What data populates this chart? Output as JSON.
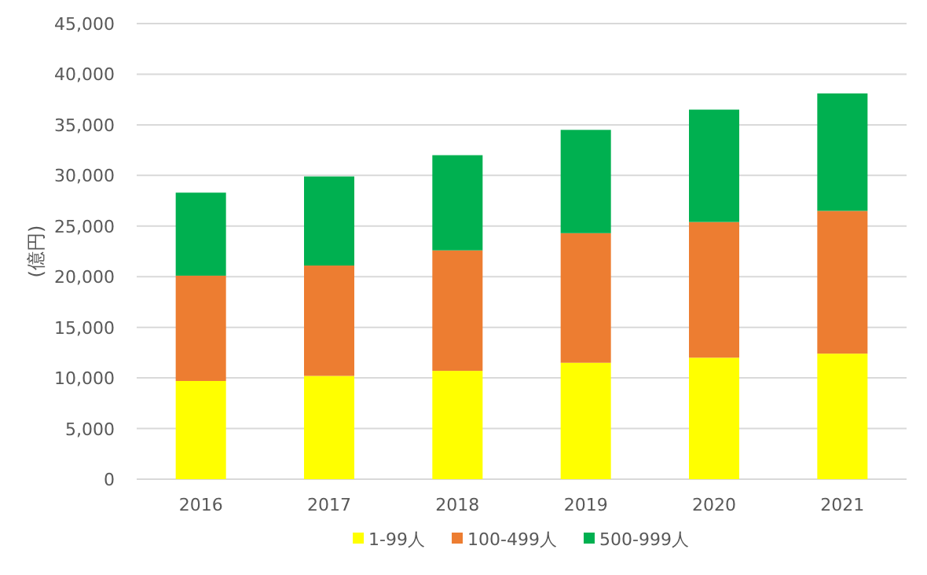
{
  "chart_data": {
    "type": "bar",
    "stacked": true,
    "ylabel": "(億円)",
    "categories": [
      "2016",
      "2017",
      "2018",
      "2019",
      "2020",
      "2021"
    ],
    "series": [
      {
        "name": "1-99人",
        "color": "#ffff00",
        "values": [
          9700,
          10200,
          10700,
          11500,
          12000,
          12400
        ]
      },
      {
        "name": "100-499人",
        "color": "#ed7d31",
        "values": [
          10400,
          10900,
          11900,
          12800,
          13400,
          14100
        ]
      },
      {
        "name": "500-999人",
        "color": "#00b050",
        "values": [
          8200,
          8800,
          9400,
          10200,
          11100,
          11600
        ]
      }
    ],
    "ylim": [
      0,
      45000
    ],
    "yticks": [
      {
        "value": 0,
        "label": "0"
      },
      {
        "value": 5000,
        "label": "5,000"
      },
      {
        "value": 10000,
        "label": "10,000"
      },
      {
        "value": 15000,
        "label": "15,000"
      },
      {
        "value": 20000,
        "label": "20,000"
      },
      {
        "value": 25000,
        "label": "25,000"
      },
      {
        "value": 30000,
        "label": "30,000"
      },
      {
        "value": 35000,
        "label": "35,000"
      },
      {
        "value": 40000,
        "label": "40,000"
      },
      {
        "value": 45000,
        "label": "45,000"
      }
    ],
    "grid": "y",
    "legend": "bottom"
  }
}
